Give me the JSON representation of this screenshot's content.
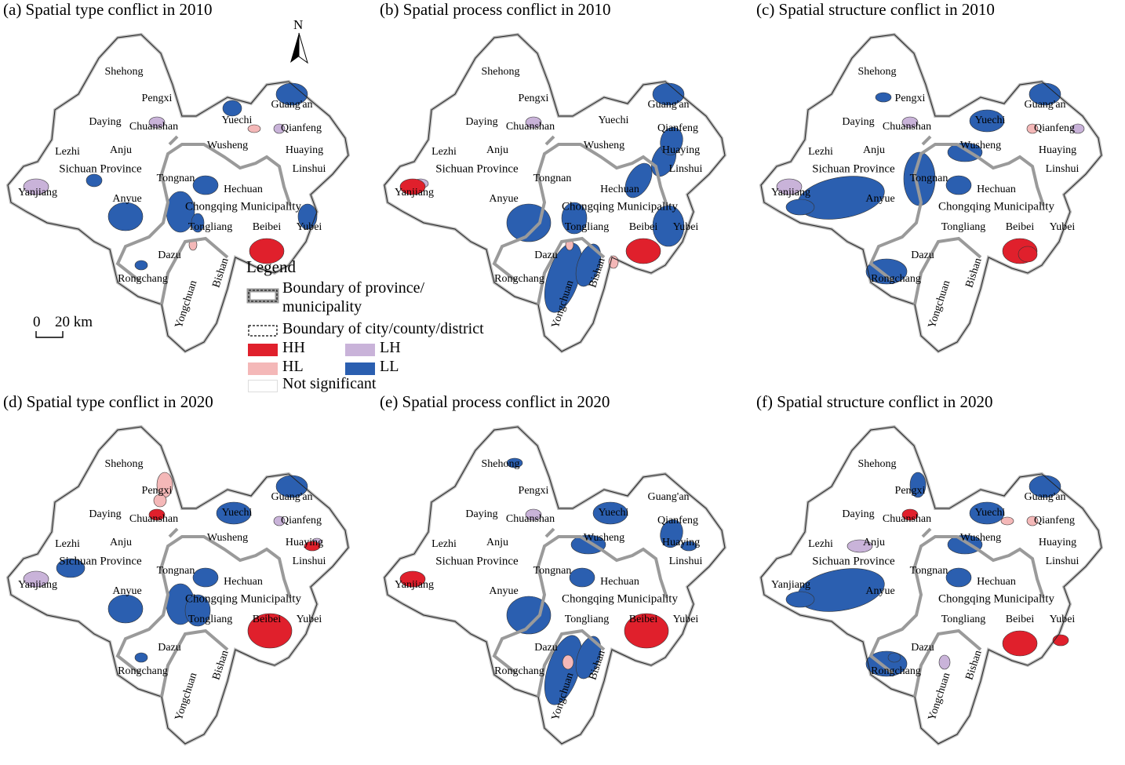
{
  "panels": [
    {
      "id": "a",
      "title": "(a) Spatial type conflict in 2010"
    },
    {
      "id": "b",
      "title": "(b) Spatial process conflict in 2010"
    },
    {
      "id": "c",
      "title": "(c) Spatial structure conflict in 2010"
    },
    {
      "id": "d",
      "title": "(d) Spatial type conflict in 2020"
    },
    {
      "id": "e",
      "title": "(e) Spatial process conflict in 2020"
    },
    {
      "id": "f",
      "title": "(f) Spatial structure conflict in 2020"
    }
  ],
  "place_names": {
    "shehong": "Shehong",
    "pengxi": "Pengxi",
    "daying": "Daying",
    "chuanshan": "Chuanshan",
    "anju": "Anju",
    "lezhi": "Lezhi",
    "sichuan": "Sichuan Province",
    "yanjiang": "Yanjiang",
    "anyue": "Anyue",
    "tongnan": "Tongnan",
    "yuechi": "Yuechi",
    "guangan": "Guang'an",
    "qianfeng": "Qianfeng",
    "huaying": "Huaying",
    "wusheng": "Wusheng",
    "linshui": "Linshui",
    "hechuan": "Hechuan",
    "chongqing": "Chongqing Municipality",
    "tongliang": "Tongliang",
    "beibei": "Beibei",
    "yubei": "Yubei",
    "dazu": "Dazu",
    "rongchang": "Rongchang",
    "yongchuan": "Yongchuan",
    "bishan": "Bishan"
  },
  "legend": {
    "title": "Legend",
    "province_boundary": "Boundary of province/",
    "province_boundary_2": "municipality",
    "city_boundary": "Boundary of city/county/district",
    "hh": "HH",
    "hl": "HL",
    "lh": "LH",
    "ll": "LL",
    "not_significant": "Not significant"
  },
  "colors": {
    "HH": "#e0202c",
    "HL": "#f4b8b8",
    "LH": "#c9b3d9",
    "LL": "#2b5fb0",
    "not_significant": "#ffffff",
    "province_boundary": "#9a9a9a"
  },
  "scale": {
    "zero": "0",
    "label": "20 km"
  },
  "north": {
    "label": "N"
  },
  "clusters": {
    "a": {
      "HH": [
        "beibei"
      ],
      "HL": [
        "yuechi_e",
        "tongliang_s"
      ],
      "LH": [
        "yanjiang",
        "chuanshan",
        "qianfeng"
      ],
      "LL": [
        "yuechi_w",
        "anyue",
        "lezhi_s",
        "chongqing_w",
        "hechuan",
        "tongnan_s",
        "yubei_n",
        "dazu",
        "guangan"
      ]
    },
    "b": {
      "HH": [
        "yanjiang",
        "beibei"
      ],
      "HL": [
        "tongliang_s",
        "bishan_e"
      ],
      "LH": [
        "yanjiang_n",
        "chuanshan"
      ],
      "LL": [
        "linshui_w",
        "huaying",
        "hechuan_e",
        "anyue_s",
        "tongliang",
        "yongchuan",
        "bishan",
        "yubei",
        "guangan"
      ]
    },
    "c": {
      "HH": [
        "beibei",
        "beibei_s"
      ],
      "HL": [
        "qianfeng"
      ],
      "LH": [
        "yanjiang",
        "chuanshan",
        "qianfeng_e"
      ],
      "LL": [
        "anyue_big",
        "tongnan",
        "wusheng",
        "yuechi",
        "guangan",
        "rongchang",
        "hechuan",
        "yanjiang_s",
        "pengxi_w"
      ]
    },
    "d": {
      "HH": [
        "beibei_big",
        "chuanshan",
        "linshui"
      ],
      "HL": [
        "pengxi",
        "chuanshan_n"
      ],
      "LH": [
        "yanjiang",
        "qianfeng",
        "linshui_n"
      ],
      "LL": [
        "yuechi",
        "anyue",
        "lezhi",
        "chongqing_w",
        "hechuan",
        "tongliang",
        "dazu",
        "guangan"
      ]
    },
    "e": {
      "HH": [
        "yanjiang",
        "beibei_big"
      ],
      "HL": [
        "yongchuan_n"
      ],
      "LH": [
        "chuanshan"
      ],
      "LL": [
        "shehong",
        "anyue_s",
        "yongchuan",
        "bishan",
        "hechuan",
        "wusheng",
        "linshui",
        "huaying",
        "yuechi"
      ]
    },
    "f": {
      "HH": [
        "chuanshan",
        "beibei",
        "yubei_s"
      ],
      "HL": [
        "qianfeng",
        "yuechi_e"
      ],
      "LH": [
        "anju",
        "yongchuan_n"
      ],
      "LL": [
        "anyue_big",
        "yanjiang_s",
        "guangan",
        "yuechi",
        "wusheng",
        "hechuan",
        "rongchang",
        "pengxi",
        "dazu"
      ]
    }
  }
}
